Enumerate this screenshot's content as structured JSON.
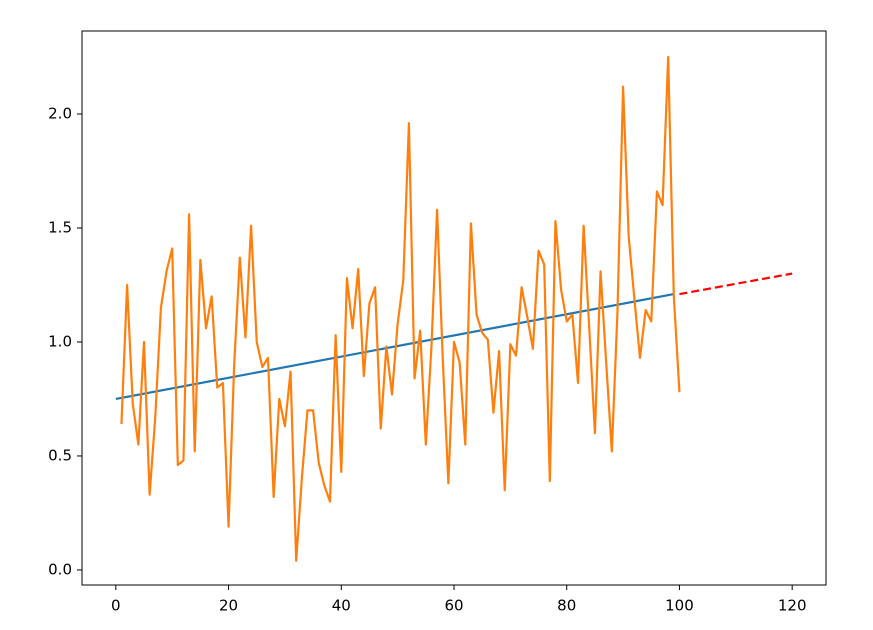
{
  "chart_data": {
    "type": "line",
    "xlim": [
      -6,
      126
    ],
    "ylim": [
      -0.066,
      2.364
    ],
    "xticks": [
      0,
      20,
      40,
      60,
      80,
      100,
      120
    ],
    "yticks": [
      {
        "value": 0,
        "label": "0.0"
      },
      0.5,
      {
        "value": 1,
        "label": "1.0"
      },
      1.5,
      {
        "value": 2,
        "label": "2.0"
      }
    ],
    "series": [
      {
        "color": "#1f77b4",
        "dashed": false,
        "x": [
          0,
          99
        ],
        "values": [
          0.75,
          1.21
        ]
      },
      {
        "color": "#ff7f0e",
        "dashed": false,
        "x": [
          1,
          2,
          3,
          4,
          5,
          6,
          7,
          8,
          9,
          10,
          11,
          12,
          13,
          14,
          15,
          16,
          17,
          18,
          19,
          20,
          21,
          22,
          23,
          24,
          25,
          26,
          27,
          28,
          29,
          30,
          31,
          32,
          33,
          34,
          35,
          36,
          37,
          38,
          39,
          40,
          41,
          42,
          43,
          44,
          45,
          46,
          47,
          48,
          49,
          50,
          51,
          52,
          53,
          54,
          55,
          56,
          57,
          58,
          59,
          60,
          61,
          62,
          63,
          64,
          65,
          66,
          67,
          68,
          69,
          70,
          71,
          72,
          73,
          74,
          75,
          76,
          77,
          78,
          79,
          80,
          81,
          82,
          83,
          84,
          85,
          86,
          87,
          88,
          89,
          90,
          91,
          92,
          93,
          94,
          95,
          96,
          97,
          98,
          99,
          100
        ],
        "values": [
          0.64,
          1.25,
          0.73,
          0.55,
          1.0,
          0.33,
          0.67,
          1.15,
          1.31,
          1.41,
          0.46,
          0.48,
          1.56,
          0.52,
          1.36,
          1.06,
          1.2,
          0.8,
          0.82,
          0.19,
          0.9,
          1.37,
          1.02,
          1.51,
          1.0,
          0.89,
          0.93,
          0.32,
          0.75,
          0.63,
          0.87,
          0.04,
          0.4,
          0.7,
          0.7,
          0.47,
          0.37,
          0.3,
          1.03,
          0.43,
          1.28,
          1.06,
          1.32,
          0.85,
          1.17,
          1.24,
          0.62,
          0.98,
          0.77,
          1.08,
          1.27,
          1.96,
          0.84,
          1.05,
          0.55,
          0.98,
          1.58,
          0.93,
          0.38,
          1.0,
          0.91,
          0.55,
          1.52,
          1.12,
          1.04,
          1.01,
          0.69,
          0.96,
          0.35,
          0.99,
          0.94,
          1.24,
          1.11,
          0.97,
          1.4,
          1.34,
          0.39,
          1.53,
          1.23,
          1.09,
          1.12,
          0.82,
          1.51,
          1.06,
          0.6,
          1.31,
          0.91,
          0.52,
          1.13,
          2.12,
          1.46,
          1.19,
          0.93,
          1.14,
          1.09,
          1.66,
          1.6,
          2.25,
          1.2,
          0.78
        ]
      },
      {
        "color": "#ff0000",
        "dashed": true,
        "x": [
          100,
          120
        ],
        "values": [
          1.21,
          1.3
        ]
      }
    ]
  }
}
